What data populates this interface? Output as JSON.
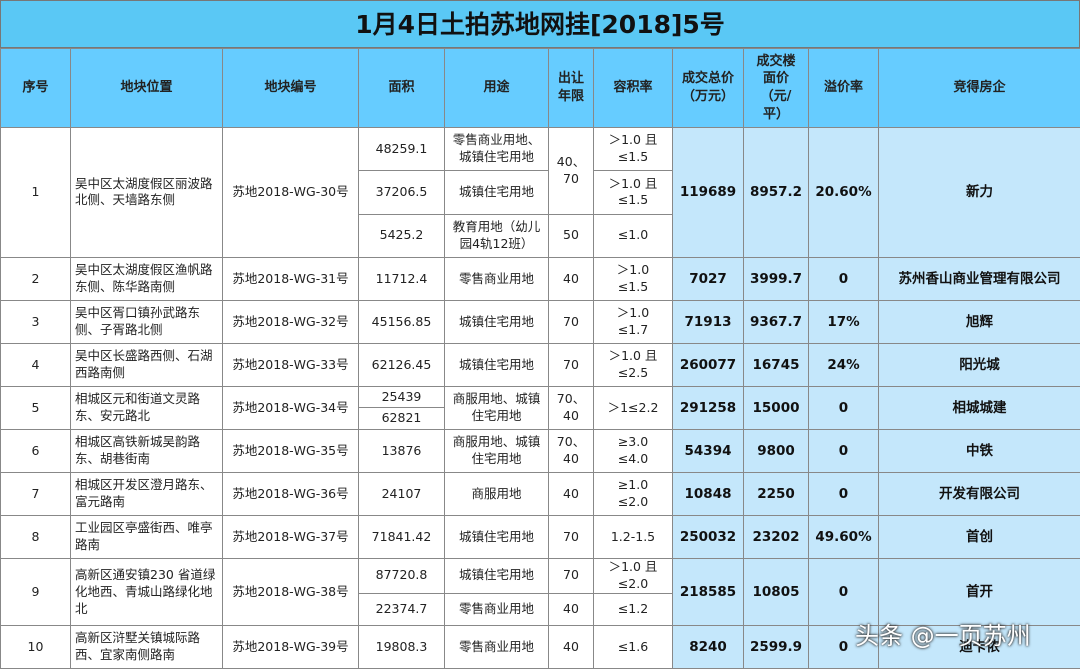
{
  "title": "1月4日土拍苏地网挂[2018]5号",
  "header": [
    "序号",
    "地块位置",
    "地块编号",
    "面积",
    "用途",
    "出让\n年限",
    "容积率",
    "成交总价\n（万元）",
    "成交楼\n面价\n（元/\n平）",
    "溢价率",
    "竞得房企"
  ],
  "rows": [
    {
      "no": "1",
      "location": "吴中区太湖度假区丽波路北侧、天墙路东侧",
      "code": "苏地2018-WG-30号",
      "areas": [
        "48259.1",
        "37206.5",
        "5425.2"
      ],
      "uses": [
        "零售商业用地、城镇住宅用地",
        "城镇住宅用地",
        "教育用地（幼儿园4轨12班）"
      ],
      "years": [
        "40、\n70",
        "50"
      ],
      "far": [
        "＞1.0 且\n≤1.5",
        "＞1.0 且\n≤1.5",
        "≤1.0"
      ],
      "total": "119689",
      "floor_price": "8957.2",
      "premium": "20.60%",
      "winner": "新力"
    },
    {
      "no": "2",
      "location": "吴中区太湖度假区渔帆路东侧、陈华路南侧",
      "code": "苏地2018-WG-31号",
      "areas": [
        "11712.4"
      ],
      "uses": [
        "零售商业用地"
      ],
      "years": [
        "40"
      ],
      "far": [
        "＞1.0\n≤1.5"
      ],
      "total": "7027",
      "floor_price": "3999.7",
      "premium": "0",
      "winner": "苏州香山商业管理有限公司"
    },
    {
      "no": "3",
      "location": "吴中区胥口镇孙武路东侧、子胥路北侧",
      "code": "苏地2018-WG-32号",
      "areas": [
        "45156.85"
      ],
      "uses": [
        "城镇住宅用地"
      ],
      "years": [
        "70"
      ],
      "far": [
        "＞1.0\n≤1.7"
      ],
      "total": "71913",
      "floor_price": "9367.7",
      "premium": "17%",
      "winner": "旭辉"
    },
    {
      "no": "4",
      "location": "吴中区长盛路西侧、石湖西路南侧",
      "code": "苏地2018-WG-33号",
      "areas": [
        "62126.45"
      ],
      "uses": [
        "城镇住宅用地"
      ],
      "years": [
        "70"
      ],
      "far": [
        "＞1.0 且\n≤2.5"
      ],
      "total": "260077",
      "floor_price": "16745",
      "premium": "24%",
      "winner": "阳光城"
    },
    {
      "no": "5",
      "location": "相城区元和街道文灵路东、安元路北",
      "code": "苏地2018-WG-34号",
      "areas": [
        "25439",
        "62821"
      ],
      "uses": [
        "商服用地、城镇住宅用地"
      ],
      "years": [
        "70、\n40"
      ],
      "far": [
        "＞1≤2.2"
      ],
      "total": "291258",
      "floor_price": "15000",
      "premium": "0",
      "winner": "相城城建"
    },
    {
      "no": "6",
      "location": "相城区高铁新城吴韵路东、胡巷街南",
      "code": "苏地2018-WG-35号",
      "areas": [
        "13876"
      ],
      "uses": [
        "商服用地、城镇住宅用地"
      ],
      "years": [
        "70、\n40"
      ],
      "far": [
        "≥3.0\n≤4.0"
      ],
      "total": "54394",
      "floor_price": "9800",
      "premium": "0",
      "winner": "中铁"
    },
    {
      "no": "7",
      "location": "相城区开发区澄月路东、富元路南",
      "code": "苏地2018-WG-36号",
      "areas": [
        "24107"
      ],
      "uses": [
        "商服用地"
      ],
      "years": [
        "40"
      ],
      "far": [
        "≥1.0\n≤2.0"
      ],
      "total": "10848",
      "floor_price": "2250",
      "premium": "0",
      "winner": "开发有限公司"
    },
    {
      "no": "8",
      "location": "工业园区亭盛街西、唯亭路南",
      "code": "苏地2018-WG-37号",
      "areas": [
        "71841.42"
      ],
      "uses": [
        "城镇住宅用地"
      ],
      "years": [
        "70"
      ],
      "far": [
        "1.2-1.5"
      ],
      "total": "250032",
      "floor_price": "23202",
      "premium": "49.60%",
      "winner": "首创"
    },
    {
      "no": "9",
      "location": "高新区通安镇230 省道绿化地西、青城山路绿化地北",
      "code": "苏地2018-WG-38号",
      "areas": [
        "87720.8",
        "22374.7"
      ],
      "uses": [
        "城镇住宅用地",
        "零售商业用地"
      ],
      "years": [
        "70",
        "40"
      ],
      "far": [
        "＞1.0 且\n≤2.0",
        "≤1.2"
      ],
      "total": "218585",
      "floor_price": "10805",
      "premium": "0",
      "winner": "首开"
    },
    {
      "no": "10",
      "location": "高新区浒墅关镇城际路西、宜家南侧路南",
      "code": "苏地2018-WG-39号",
      "areas": [
        "19808.3"
      ],
      "uses": [
        "零售商业用地"
      ],
      "years": [
        "40"
      ],
      "far": [
        "≤1.6"
      ],
      "total": "8240",
      "floor_price": "2599.9",
      "premium": "0",
      "winner": "迪卡侬"
    }
  ],
  "watermark": "头条 @一页苏州"
}
